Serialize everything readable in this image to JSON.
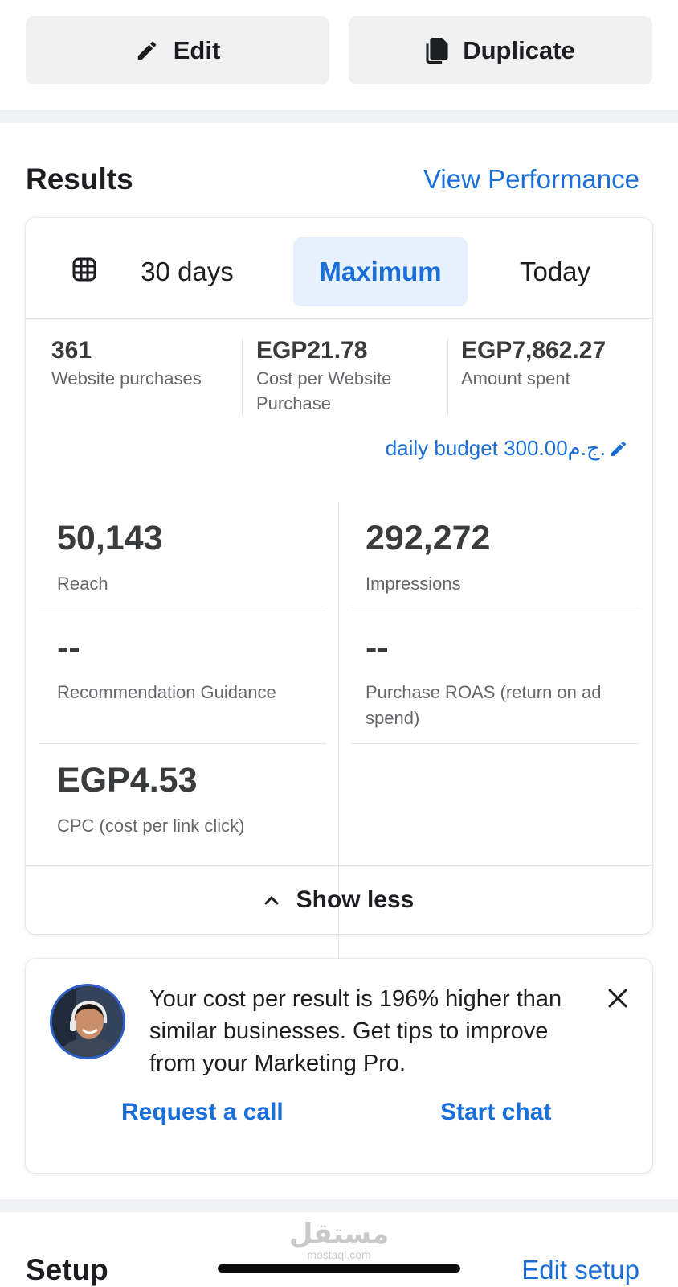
{
  "actions": {
    "edit_label": "Edit",
    "duplicate_label": "Duplicate"
  },
  "results": {
    "title": "Results",
    "view_performance": "View Performance",
    "date_range": {
      "options": [
        "30 days",
        "Maximum",
        "Today"
      ],
      "selected": "Maximum"
    },
    "summary": [
      {
        "value": "361",
        "label": "Website purchases"
      },
      {
        "value": "EGP21.78",
        "label": "Cost per Website Purchase"
      },
      {
        "value": "EGP7,862.27",
        "label": "Amount spent"
      }
    ],
    "daily_budget": "daily budget 300.00ج.م.",
    "metrics": [
      {
        "value": "50,143",
        "label": "Reach"
      },
      {
        "value": "292,272",
        "label": "Impressions"
      },
      {
        "value": "--",
        "label": "Recommendation Guidance"
      },
      {
        "value": "--",
        "label": "Purchase ROAS (return on ad spend)"
      },
      {
        "value": "EGP4.53",
        "label": "CPC (cost per link click)"
      }
    ],
    "show_less": "Show less"
  },
  "tip": {
    "message": "Your cost per result is 196% higher than similar businesses. Get tips to improve from your Marketing Pro.",
    "request_call": "Request a call",
    "start_chat": "Start chat"
  },
  "setup": {
    "title": "Setup",
    "edit_setup": "Edit setup"
  },
  "watermark": {
    "arabic": "مستقل",
    "latin": "mostaql.com"
  },
  "colors": {
    "accent": "#1a6ed8",
    "selected_bg": "#e7f1fd",
    "button_bg": "#f0f0f0",
    "section_band": "#f0f2f5"
  }
}
